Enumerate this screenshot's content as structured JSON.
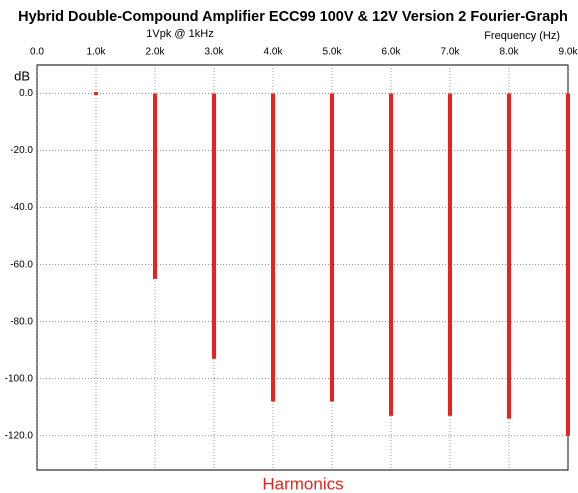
{
  "chart_data": {
    "type": "bar",
    "title": "Hybrid Double-Compound Amplifier ECC99 100V & 12V Version 2 Fourier-Graph",
    "subtitle": "1Vpk @ 1kHz",
    "x_label": "Frequency  (Hz)",
    "y_label": "dB",
    "bottom_label": "Harmonics",
    "x": [
      1000,
      2000,
      3000,
      4000,
      5000,
      6000,
      7000,
      8000,
      9000
    ],
    "values": [
      0,
      -65,
      -93,
      -108,
      -108,
      -113,
      -113,
      -114,
      -120
    ],
    "color": "#e8231d",
    "xlim": [
      0,
      9000
    ],
    "ylim": [
      -132,
      10
    ],
    "xticks": [
      {
        "value": 0,
        "label": "0.0"
      },
      {
        "value": 1000,
        "label": "1.0k"
      },
      {
        "value": 2000,
        "label": "2.0k"
      },
      {
        "value": 3000,
        "label": "3.0k"
      },
      {
        "value": 4000,
        "label": "4.0k"
      },
      {
        "value": 5000,
        "label": "5.0k"
      },
      {
        "value": 6000,
        "label": "6.0k"
      },
      {
        "value": 7000,
        "label": "7.0k"
      },
      {
        "value": 8000,
        "label": "8.0k"
      },
      {
        "value": 9000,
        "label": "9.0k"
      }
    ],
    "yticks": [
      {
        "value": 0,
        "label": "0.0"
      },
      {
        "value": -20,
        "label": "-20.0"
      },
      {
        "value": -40,
        "label": "-40.0"
      },
      {
        "value": -60,
        "label": "-60.0"
      },
      {
        "value": -80,
        "label": "-80.0"
      },
      {
        "value": -100,
        "label": "-100.0"
      },
      {
        "value": -120,
        "label": "-120.0"
      }
    ],
    "grid": true
  }
}
